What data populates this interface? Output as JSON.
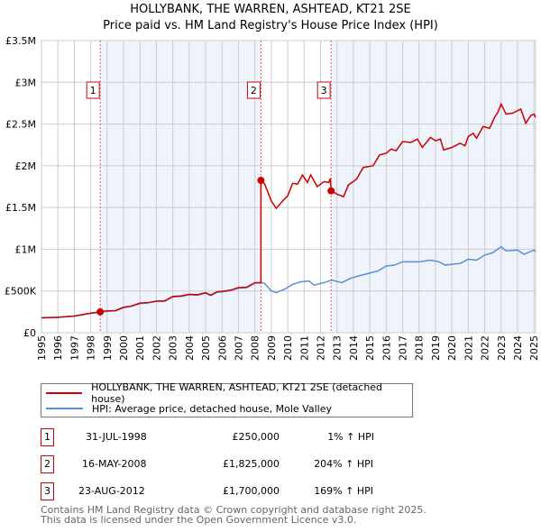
{
  "chart_data": {
    "type": "line",
    "title": "HOLLYBANK, THE WARREN, ASHTEAD, KT21 2SE",
    "subtitle": "Price paid vs. HM Land Registry's House Price Index (HPI)",
    "xlim": [
      1995,
      2025.1
    ],
    "ylim": [
      0,
      3500000
    ],
    "x_ticks": [
      "1995",
      "1996",
      "1997",
      "1998",
      "1999",
      "2000",
      "2001",
      "2002",
      "2003",
      "2004",
      "2005",
      "2006",
      "2007",
      "2008",
      "2009",
      "2010",
      "2011",
      "2012",
      "2013",
      "2014",
      "2015",
      "2016",
      "2017",
      "2018",
      "2019",
      "2020",
      "2021",
      "2022",
      "2023",
      "2024",
      "2025"
    ],
    "y_ticks": [
      {
        "v": 0,
        "label": "£0"
      },
      {
        "v": 500000,
        "label": "£500K"
      },
      {
        "v": 1000000,
        "label": "£1M"
      },
      {
        "v": 1500000,
        "label": "£1.5M"
      },
      {
        "v": 2000000,
        "label": "£2M"
      },
      {
        "v": 2500000,
        "label": "£2.5M"
      },
      {
        "v": 3000000,
        "label": "£3M"
      },
      {
        "v": 3500000,
        "label": "£3.5M"
      }
    ],
    "grid": true,
    "colors": {
      "property": "#cc0000",
      "hpi": "#5b8fd6",
      "shade": "#eef3fc",
      "marker_line": "#e06060"
    },
    "shaded_ranges": [
      [
        1998.58,
        2008.37
      ],
      [
        2012.64,
        2025.1
      ]
    ],
    "series": [
      {
        "name": "HOLLYBANK, THE WARREN, ASHTEAD, KT21 2SE (detached house)",
        "key": "property",
        "points": [
          [
            1995,
            180000
          ],
          [
            1996,
            185000
          ],
          [
            1997,
            200000
          ],
          [
            1998,
            235000
          ],
          [
            1998.58,
            250000
          ],
          [
            1999,
            262000
          ],
          [
            1999.5,
            265000
          ],
          [
            2000,
            305000
          ],
          [
            2000.5,
            320000
          ],
          [
            2001,
            355000
          ],
          [
            2001.5,
            360000
          ],
          [
            2002,
            380000
          ],
          [
            2002.5,
            380000
          ],
          [
            2003,
            435000
          ],
          [
            2003.5,
            440000
          ],
          [
            2004,
            460000
          ],
          [
            2004.5,
            455000
          ],
          [
            2005,
            480000
          ],
          [
            2005.3,
            450000
          ],
          [
            2005.7,
            490000
          ],
          [
            2006,
            495000
          ],
          [
            2006.5,
            510000
          ],
          [
            2007,
            540000
          ],
          [
            2007.5,
            545000
          ],
          [
            2008,
            600000
          ],
          [
            2008.37,
            600000
          ],
          [
            2008.37,
            1825000
          ],
          [
            2008.6,
            1780000
          ],
          [
            2009,
            1580000
          ],
          [
            2009.3,
            1490000
          ],
          [
            2009.7,
            1580000
          ],
          [
            2010,
            1640000
          ],
          [
            2010.3,
            1790000
          ],
          [
            2010.6,
            1780000
          ],
          [
            2010.9,
            1890000
          ],
          [
            2011.2,
            1800000
          ],
          [
            2011.4,
            1890000
          ],
          [
            2011.8,
            1750000
          ],
          [
            2012.2,
            1810000
          ],
          [
            2012.5,
            1800000
          ],
          [
            2012.6,
            1850000
          ],
          [
            2012.64,
            1700000
          ],
          [
            2013,
            1660000
          ],
          [
            2013.4,
            1630000
          ],
          [
            2013.7,
            1770000
          ],
          [
            2014.2,
            1840000
          ],
          [
            2014.6,
            1980000
          ],
          [
            2015.2,
            2000000
          ],
          [
            2015.6,
            2130000
          ],
          [
            2016,
            2150000
          ],
          [
            2016.3,
            2200000
          ],
          [
            2016.6,
            2180000
          ],
          [
            2017,
            2290000
          ],
          [
            2017.5,
            2280000
          ],
          [
            2017.9,
            2320000
          ],
          [
            2018.2,
            2220000
          ],
          [
            2018.7,
            2340000
          ],
          [
            2019,
            2300000
          ],
          [
            2019.3,
            2320000
          ],
          [
            2019.5,
            2190000
          ],
          [
            2020,
            2220000
          ],
          [
            2020.5,
            2270000
          ],
          [
            2020.8,
            2240000
          ],
          [
            2021,
            2350000
          ],
          [
            2021.3,
            2390000
          ],
          [
            2021.5,
            2330000
          ],
          [
            2021.9,
            2470000
          ],
          [
            2022.3,
            2450000
          ],
          [
            2022.6,
            2580000
          ],
          [
            2022.8,
            2640000
          ],
          [
            2023,
            2740000
          ],
          [
            2023.3,
            2620000
          ],
          [
            2023.7,
            2630000
          ],
          [
            2024.2,
            2680000
          ],
          [
            2024.5,
            2510000
          ],
          [
            2024.8,
            2600000
          ],
          [
            2025,
            2620000
          ],
          [
            2025.1,
            2580000
          ]
        ]
      },
      {
        "name": "HPI: Average price, detached house, Mole Valley",
        "key": "hpi",
        "points": [
          [
            1995,
            175000
          ],
          [
            1996,
            183000
          ],
          [
            1997,
            198000
          ],
          [
            1998,
            232000
          ],
          [
            1998.58,
            247000
          ],
          [
            1999,
            258000
          ],
          [
            1999.5,
            262000
          ],
          [
            2000,
            300000
          ],
          [
            2000.5,
            318000
          ],
          [
            2001,
            350000
          ],
          [
            2001.5,
            358000
          ],
          [
            2002,
            375000
          ],
          [
            2002.5,
            378000
          ],
          [
            2003,
            430000
          ],
          [
            2003.5,
            435000
          ],
          [
            2004,
            455000
          ],
          [
            2004.5,
            450000
          ],
          [
            2005,
            475000
          ],
          [
            2005.3,
            445000
          ],
          [
            2005.7,
            485000
          ],
          [
            2006,
            490000
          ],
          [
            2006.5,
            505000
          ],
          [
            2007,
            535000
          ],
          [
            2007.5,
            540000
          ],
          [
            2008,
            595000
          ],
          [
            2008.4,
            600000
          ],
          [
            2008.6,
            590000
          ],
          [
            2009,
            500000
          ],
          [
            2009.3,
            480000
          ],
          [
            2009.8,
            520000
          ],
          [
            2010.3,
            580000
          ],
          [
            2010.8,
            610000
          ],
          [
            2011.3,
            620000
          ],
          [
            2011.6,
            570000
          ],
          [
            2012.2,
            600000
          ],
          [
            2012.7,
            630000
          ],
          [
            2013.3,
            600000
          ],
          [
            2013.8,
            650000
          ],
          [
            2014.5,
            690000
          ],
          [
            2015.5,
            740000
          ],
          [
            2016,
            800000
          ],
          [
            2016.5,
            810000
          ],
          [
            2017,
            850000
          ],
          [
            2018,
            850000
          ],
          [
            2018.7,
            870000
          ],
          [
            2019.2,
            850000
          ],
          [
            2019.6,
            810000
          ],
          [
            2020.5,
            830000
          ],
          [
            2021,
            880000
          ],
          [
            2021.5,
            870000
          ],
          [
            2022,
            930000
          ],
          [
            2022.5,
            960000
          ],
          [
            2023,
            1030000
          ],
          [
            2023.3,
            980000
          ],
          [
            2024,
            990000
          ],
          [
            2024.4,
            940000
          ],
          [
            2025,
            990000
          ],
          [
            2025.1,
            970000
          ]
        ]
      }
    ],
    "sales": [
      {
        "n": "1",
        "x": 1998.58,
        "price_value": 250000,
        "date": "31-JUL-1998",
        "price": "£250,000",
        "hpi": "1% ↑ HPI"
      },
      {
        "n": "2",
        "x": 2008.37,
        "price_value": 1825000,
        "date": "16-MAY-2008",
        "price": "£1,825,000",
        "hpi": "204% ↑ HPI"
      },
      {
        "n": "3",
        "x": 2012.64,
        "price_value": 1700000,
        "date": "23-AUG-2012",
        "price": "£1,700,000",
        "hpi": "169% ↑ HPI"
      }
    ]
  },
  "footer": {
    "line1": "Contains HM Land Registry data © Crown copyright and database right 2025.",
    "line2": "This data is licensed under the Open Government Licence v3.0."
  }
}
